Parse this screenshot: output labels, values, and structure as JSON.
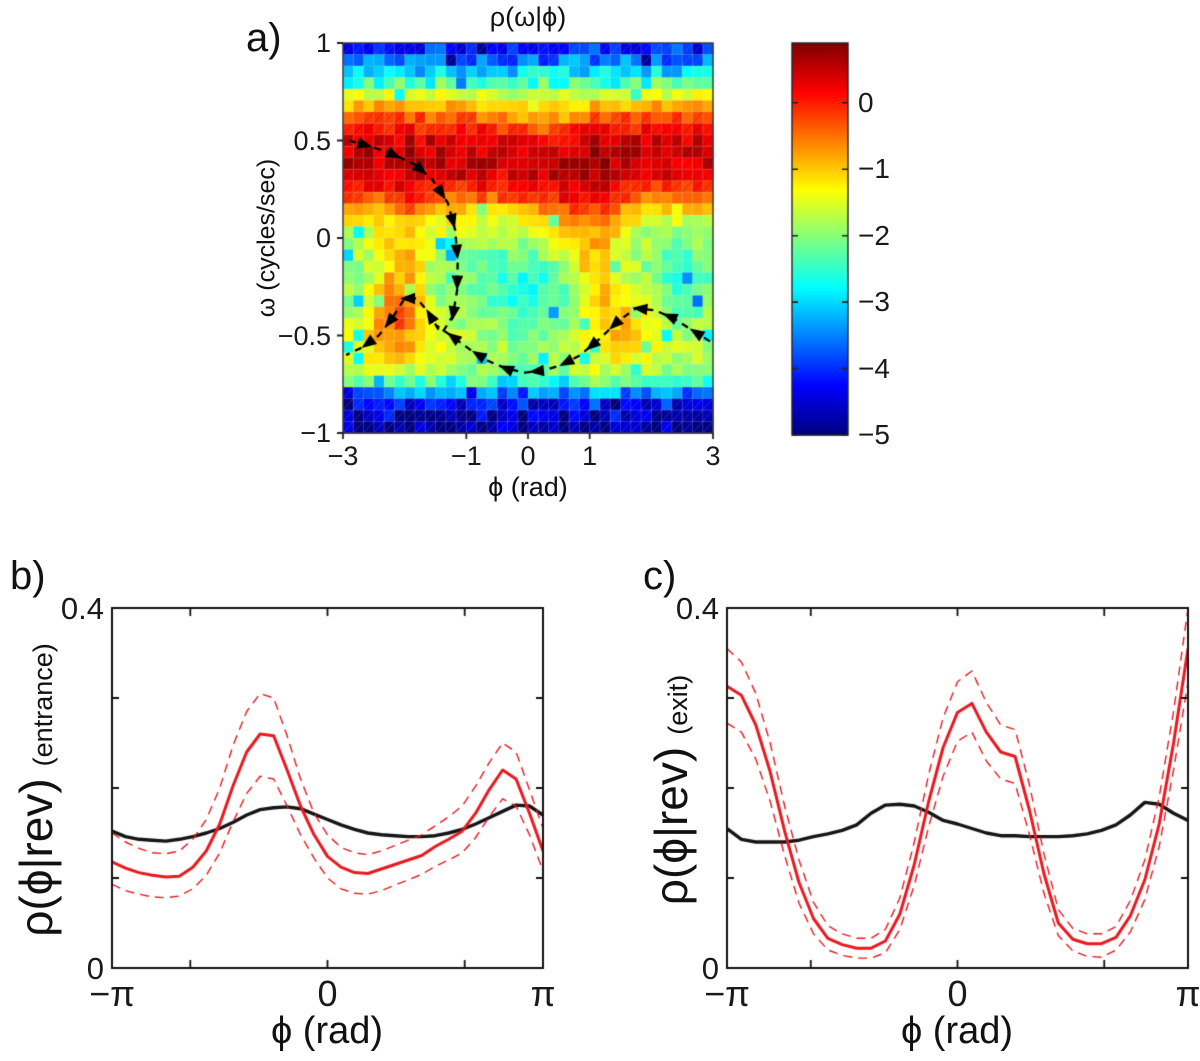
{
  "page": {
    "background": "#ffffff",
    "figure_type": "three-panel scientific figure"
  },
  "colors": {
    "red_series": "#e8191f",
    "black_series": "#141414",
    "axis": "#111111",
    "trajectory": "#000000"
  },
  "chart_data": [
    {
      "panel_label": "a)",
      "type": "heatmap",
      "title": "ρ(ω|ϕ)",
      "xlabel": "ϕ (rad)",
      "ylabel": "ω (cycles/sec)",
      "xlim": [
        -3,
        3
      ],
      "ylim": [
        -1,
        1
      ],
      "xticks": [
        {
          "v": -3,
          "label": "−3"
        },
        {
          "v": -1,
          "label": "−1"
        },
        {
          "v": 0,
          "label": "0"
        },
        {
          "v": 1,
          "label": "1"
        },
        {
          "v": 3,
          "label": "3"
        }
      ],
      "yticks": [
        {
          "v": 1,
          "label": "1"
        },
        {
          "v": 0.5,
          "label": "0.5"
        },
        {
          "v": 0,
          "label": "0"
        },
        {
          "v": -0.5,
          "label": "−0.5"
        },
        {
          "v": -1,
          "label": "−1"
        }
      ],
      "grid": [
        36,
        34
      ],
      "caxis": [
        -5,
        0.9
      ],
      "colorbar": {
        "colormap": "jet",
        "ticks": [
          {
            "v": 0,
            "label": "0"
          },
          {
            "v": -1,
            "label": "−1"
          },
          {
            "v": -2,
            "label": "−2"
          },
          {
            "v": -3,
            "label": "−3"
          },
          {
            "v": -4,
            "label": "−4"
          },
          {
            "v": -5,
            "label": "−5"
          }
        ]
      },
      "density_profile": [
        [
          -1.0,
          -4.9
        ],
        [
          -0.92,
          -4.6
        ],
        [
          -0.86,
          -4.3
        ],
        [
          -0.8,
          -3.6
        ],
        [
          -0.76,
          -3.0
        ],
        [
          -0.72,
          -2.2
        ],
        [
          -0.66,
          -1.8
        ],
        [
          -0.6,
          -1.65
        ],
        [
          -0.52,
          -1.6
        ],
        [
          -0.44,
          -1.75
        ],
        [
          -0.36,
          -1.9
        ],
        [
          -0.28,
          -2.0
        ],
        [
          -0.2,
          -2.05
        ],
        [
          -0.12,
          -1.95
        ],
        [
          -0.04,
          -1.8
        ],
        [
          0.04,
          -1.6
        ],
        [
          0.1,
          -1.3
        ],
        [
          0.16,
          -0.8
        ],
        [
          0.22,
          -0.25
        ],
        [
          0.28,
          0.15
        ],
        [
          0.34,
          0.4
        ],
        [
          0.42,
          0.5
        ],
        [
          0.5,
          0.35
        ],
        [
          0.56,
          0.05
        ],
        [
          0.62,
          -0.35
        ],
        [
          0.68,
          -0.9
        ],
        [
          0.74,
          -1.5
        ],
        [
          0.78,
          -2.2
        ],
        [
          0.84,
          -2.9
        ],
        [
          0.9,
          -3.5
        ],
        [
          0.96,
          -4.0
        ],
        [
          1.0,
          -4.2
        ]
      ],
      "blobs": [
        {
          "phi": -2.15,
          "omega": -0.38,
          "wphi": 0.45,
          "womega": 0.28,
          "amp": 1.3
        },
        {
          "phi": -1.95,
          "omega": -0.05,
          "wphi": 0.4,
          "womega": 0.3,
          "amp": 0.6
        },
        {
          "phi": 1.05,
          "omega": -0.15,
          "wphi": 0.45,
          "womega": 0.45,
          "amp": 1.1
        },
        {
          "phi": 1.7,
          "omega": -0.4,
          "wphi": 0.5,
          "womega": 0.25,
          "amp": 0.8
        },
        {
          "phi": 0.15,
          "omega": -0.3,
          "wphi": 0.9,
          "womega": 0.35,
          "amp": -0.7
        },
        {
          "phi": 2.4,
          "omega": -0.2,
          "wphi": 0.6,
          "womega": 0.4,
          "amp": -0.45
        },
        {
          "phi": 0.2,
          "omega": 0.62,
          "wphi": 0.7,
          "womega": 0.12,
          "amp": -0.55
        },
        {
          "phi": 0.35,
          "omega": 0.05,
          "wphi": 0.5,
          "womega": 0.25,
          "amp": 0.5
        }
      ],
      "noise": {
        "base": 0.3,
        "edge": 0.55,
        "speckle_prob": 0.035,
        "speckle_drop": 1.1
      },
      "trajectory": {
        "color": "#000000",
        "style": "dashed-with-arrowheads",
        "paths": [
          [
            [
              -2.9,
              0.5
            ],
            [
              -2.55,
              0.47
            ],
            [
              -2.2,
              0.43
            ],
            [
              -1.85,
              0.38
            ],
            [
              -1.55,
              0.3
            ],
            [
              -1.3,
              0.18
            ],
            [
              -1.18,
              0.04
            ],
            [
              -1.14,
              -0.12
            ],
            [
              -1.15,
              -0.27
            ],
            [
              -1.22,
              -0.4
            ],
            [
              -1.38,
              -0.48
            ]
          ],
          [
            [
              -1.45,
              -0.47
            ],
            [
              -1.62,
              -0.38
            ],
            [
              -1.8,
              -0.31
            ],
            [
              -2.0,
              -0.31
            ],
            [
              -2.2,
              -0.41
            ],
            [
              -2.42,
              -0.5
            ],
            [
              -2.68,
              -0.56
            ],
            [
              -2.95,
              -0.6
            ]
          ],
          [
            [
              2.95,
              -0.53
            ],
            [
              2.65,
              -0.47
            ],
            [
              2.35,
              -0.41
            ],
            [
              2.05,
              -0.37
            ],
            [
              1.75,
              -0.36
            ],
            [
              1.45,
              -0.43
            ],
            [
              1.15,
              -0.52
            ],
            [
              0.85,
              -0.6
            ],
            [
              0.55,
              -0.65
            ],
            [
              0.25,
              -0.68
            ],
            [
              -0.05,
              -0.69
            ],
            [
              -0.35,
              -0.67
            ],
            [
              -0.65,
              -0.63
            ],
            [
              -0.95,
              -0.57
            ],
            [
              -1.25,
              -0.5
            ],
            [
              -1.48,
              -0.45
            ]
          ]
        ]
      }
    },
    {
      "panel_label": "b)",
      "type": "line",
      "xlabel": "ϕ (rad)",
      "ylabel_main": "ρ(ϕ|rev)",
      "ylabel_sub": "(entrance)",
      "xlim": [
        -3.1416,
        3.1416
      ],
      "ylim": [
        0,
        0.4
      ],
      "xticks": [
        {
          "v": -3.1416,
          "label": "−π"
        },
        {
          "v": 0,
          "label": "0"
        },
        {
          "v": 3.1416,
          "label": "π"
        }
      ],
      "xticks_minor": [
        -2,
        2
      ],
      "yticks": [
        {
          "v": 0.4,
          "label": "0.4"
        },
        {
          "v": 0,
          "label": "0"
        }
      ],
      "yticks_minor": [
        0.1,
        0.2,
        0.3
      ],
      "x": [
        -3.142,
        -2.945,
        -2.749,
        -2.553,
        -2.356,
        -2.16,
        -1.963,
        -1.767,
        -1.571,
        -1.374,
        -1.178,
        -0.982,
        -0.785,
        -0.589,
        -0.393,
        -0.196,
        0,
        0.196,
        0.393,
        0.589,
        0.785,
        0.982,
        1.178,
        1.374,
        1.571,
        1.767,
        1.963,
        2.16,
        2.356,
        2.553,
        2.749,
        2.945,
        3.142
      ],
      "series": [
        {
          "name": "black-solid-reference",
          "color": "#141414",
          "width": 3.4,
          "style": "solid",
          "y": [
            0.152,
            0.146,
            0.143,
            0.142,
            0.141,
            0.143,
            0.146,
            0.15,
            0.155,
            0.162,
            0.17,
            0.176,
            0.178,
            0.179,
            0.177,
            0.171,
            0.165,
            0.159,
            0.154,
            0.15,
            0.148,
            0.147,
            0.146,
            0.146,
            0.147,
            0.15,
            0.154,
            0.16,
            0.167,
            0.174,
            0.181,
            0.18,
            0.17
          ]
        },
        {
          "name": "red-dashed-upper",
          "color": "#e8191f",
          "width": 1.4,
          "style": "dashed",
          "y": [
            0.15,
            0.14,
            0.133,
            0.128,
            0.127,
            0.13,
            0.143,
            0.165,
            0.2,
            0.248,
            0.285,
            0.305,
            0.3,
            0.258,
            0.21,
            0.172,
            0.148,
            0.134,
            0.128,
            0.126,
            0.13,
            0.136,
            0.142,
            0.148,
            0.158,
            0.168,
            0.18,
            0.202,
            0.228,
            0.25,
            0.24,
            0.198,
            0.155
          ]
        },
        {
          "name": "red-dashed-lower",
          "color": "#e8191f",
          "width": 1.4,
          "style": "dashed",
          "y": [
            0.093,
            0.086,
            0.082,
            0.079,
            0.078,
            0.08,
            0.088,
            0.103,
            0.128,
            0.163,
            0.194,
            0.213,
            0.21,
            0.18,
            0.148,
            0.122,
            0.1,
            0.088,
            0.083,
            0.082,
            0.086,
            0.092,
            0.098,
            0.104,
            0.113,
            0.12,
            0.128,
            0.145,
            0.168,
            0.188,
            0.18,
            0.148,
            0.108
          ]
        },
        {
          "name": "red-solid-main",
          "color": "#e8191f",
          "width": 3.0,
          "style": "solid",
          "y": [
            0.118,
            0.111,
            0.106,
            0.103,
            0.101,
            0.102,
            0.112,
            0.13,
            0.16,
            0.203,
            0.24,
            0.26,
            0.258,
            0.22,
            0.18,
            0.148,
            0.124,
            0.112,
            0.106,
            0.105,
            0.11,
            0.115,
            0.12,
            0.125,
            0.135,
            0.143,
            0.152,
            0.172,
            0.198,
            0.22,
            0.21,
            0.172,
            0.13
          ]
        }
      ]
    },
    {
      "panel_label": "c)",
      "type": "line",
      "xlabel": "ϕ (rad)",
      "ylabel_main": "ρ(ϕ|rev)",
      "ylabel_sub": "(exit)",
      "xlim": [
        -3.1416,
        3.1416
      ],
      "ylim": [
        0,
        0.4
      ],
      "xticks": [
        {
          "v": -3.1416,
          "label": "−π"
        },
        {
          "v": 0,
          "label": "0"
        },
        {
          "v": 3.1416,
          "label": "π"
        }
      ],
      "xticks_minor": [
        -2,
        2
      ],
      "yticks": [
        {
          "v": 0.4,
          "label": "0.4"
        },
        {
          "v": 0,
          "label": "0"
        }
      ],
      "yticks_minor": [
        0.1,
        0.2,
        0.3
      ],
      "x": [
        -3.142,
        -2.945,
        -2.749,
        -2.553,
        -2.356,
        -2.16,
        -1.963,
        -1.767,
        -1.571,
        -1.374,
        -1.178,
        -0.982,
        -0.785,
        -0.589,
        -0.393,
        -0.196,
        0,
        0.196,
        0.393,
        0.589,
        0.785,
        0.982,
        1.178,
        1.374,
        1.571,
        1.767,
        1.963,
        2.16,
        2.356,
        2.553,
        2.749,
        2.945,
        3.142
      ],
      "series": [
        {
          "name": "black-solid-reference",
          "color": "#141414",
          "width": 3.4,
          "style": "solid",
          "y": [
            0.155,
            0.143,
            0.14,
            0.14,
            0.14,
            0.142,
            0.146,
            0.149,
            0.153,
            0.159,
            0.172,
            0.181,
            0.182,
            0.18,
            0.173,
            0.164,
            0.16,
            0.155,
            0.15,
            0.147,
            0.147,
            0.146,
            0.146,
            0.146,
            0.147,
            0.149,
            0.153,
            0.159,
            0.17,
            0.184,
            0.182,
            0.172,
            0.164
          ]
        },
        {
          "name": "red-dashed-upper",
          "color": "#e8191f",
          "width": 1.4,
          "style": "dashed",
          "y": [
            0.355,
            0.34,
            0.305,
            0.25,
            0.18,
            0.12,
            0.073,
            0.047,
            0.038,
            0.033,
            0.033,
            0.043,
            0.078,
            0.14,
            0.215,
            0.278,
            0.318,
            0.33,
            0.295,
            0.27,
            0.265,
            0.203,
            0.127,
            0.065,
            0.044,
            0.038,
            0.038,
            0.046,
            0.075,
            0.12,
            0.19,
            0.285,
            0.4
          ]
        },
        {
          "name": "red-dashed-lower",
          "color": "#e8191f",
          "width": 1.4,
          "style": "dashed",
          "y": [
            0.272,
            0.262,
            0.232,
            0.185,
            0.125,
            0.072,
            0.038,
            0.02,
            0.014,
            0.011,
            0.011,
            0.017,
            0.043,
            0.092,
            0.157,
            0.213,
            0.252,
            0.262,
            0.23,
            0.21,
            0.205,
            0.148,
            0.083,
            0.036,
            0.019,
            0.013,
            0.012,
            0.02,
            0.04,
            0.076,
            0.135,
            0.22,
            0.318
          ]
        },
        {
          "name": "red-solid-main",
          "color": "#e8191f",
          "width": 3.0,
          "style": "solid",
          "y": [
            0.313,
            0.303,
            0.27,
            0.218,
            0.152,
            0.095,
            0.055,
            0.033,
            0.026,
            0.022,
            0.022,
            0.03,
            0.06,
            0.115,
            0.185,
            0.245,
            0.284,
            0.294,
            0.262,
            0.24,
            0.235,
            0.175,
            0.105,
            0.05,
            0.032,
            0.027,
            0.027,
            0.034,
            0.058,
            0.098,
            0.16,
            0.25,
            0.355
          ]
        }
      ]
    }
  ]
}
